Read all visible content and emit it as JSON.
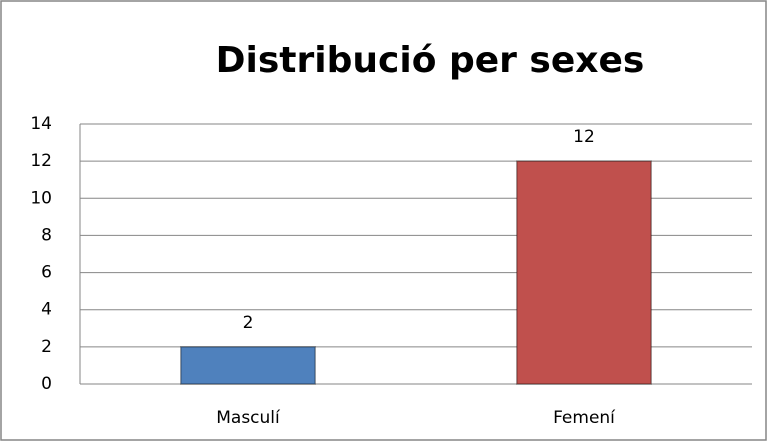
{
  "chart_data": {
    "type": "bar",
    "title": "Distribució per sexes",
    "categories": [
      "Masculí",
      "Femení"
    ],
    "values": [
      2,
      12
    ],
    "colors": [
      "#4f81bd",
      "#c0504d"
    ],
    "ylim": [
      0,
      14
    ],
    "yticks": [
      0,
      2,
      4,
      6,
      8,
      10,
      12,
      14
    ],
    "grid": true
  }
}
